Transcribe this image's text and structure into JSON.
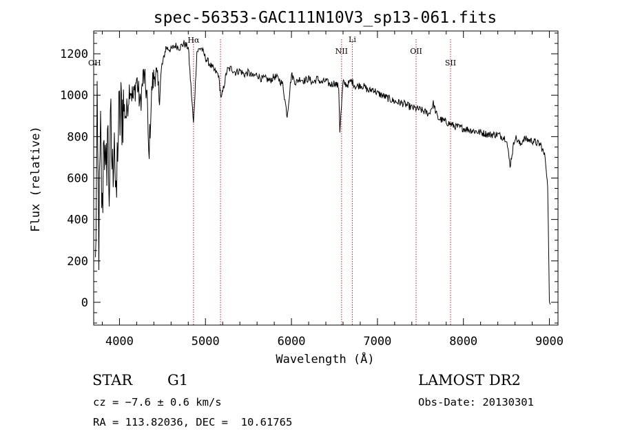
{
  "chart_data": {
    "type": "line",
    "title": "spec-56353-GAC111N10V3_sp13-061.fits",
    "xlabel": "Wavelength (Å)",
    "ylabel": "Flux (relative)",
    "xlim": [
      3700,
      9100
    ],
    "ylim": [
      -110,
      1310
    ],
    "xticks": [
      4000,
      5000,
      6000,
      7000,
      8000,
      9000
    ],
    "yticks": [
      0,
      200,
      400,
      600,
      800,
      1000,
      1200
    ],
    "grid": false,
    "series": [
      {
        "x": [
          3720,
          3740,
          3760,
          3780,
          3800,
          3820,
          3840,
          3860,
          3880,
          3900,
          3920,
          3940,
          3960,
          3980,
          4000,
          4040,
          4080,
          4120,
          4160,
          4200,
          4240,
          4280,
          4320,
          4340,
          4380,
          4420,
          4460,
          4500,
          4540,
          4600,
          4650,
          4700,
          4750,
          4800,
          4861,
          4900,
          4950,
          5000,
          5050,
          5100,
          5150,
          5184,
          5250,
          5300,
          5350,
          5400,
          5450,
          5500,
          5550,
          5600,
          5650,
          5700,
          5750,
          5800,
          5850,
          5900,
          5950,
          6000,
          6050,
          6100,
          6150,
          6200,
          6250,
          6300,
          6350,
          6400,
          6450,
          6500,
          6550,
          6563,
          6600,
          6650,
          6700,
          6750,
          6800,
          6850,
          6900,
          6950,
          7000,
          7100,
          7200,
          7300,
          7400,
          7500,
          7600,
          7650,
          7700,
          7800,
          7900,
          8000,
          8100,
          8200,
          8300,
          8400,
          8500,
          8542,
          8600,
          8662,
          8700,
          8800,
          8900,
          8950,
          8980,
          9000,
          9010
        ],
        "y": [
          150,
          850,
          300,
          780,
          400,
          900,
          500,
          850,
          560,
          820,
          600,
          900,
          380,
          800,
          880,
          950,
          900,
          1050,
          980,
          1080,
          950,
          1100,
          1000,
          700,
          1050,
          1120,
          1000,
          1150,
          1230,
          1220,
          1240,
          1230,
          1250,
          1230,
          860,
          1210,
          1230,
          1180,
          1150,
          1120,
          1100,
          980,
          1120,
          1130,
          1110,
          1120,
          1100,
          1110,
          1090,
          1100,
          1080,
          1080,
          1070,
          1090,
          1080,
          1050,
          900,
          1100,
          1060,
          1080,
          1070,
          1080,
          1060,
          1080,
          1060,
          1070,
          1050,
          1060,
          1040,
          830,
          1060,
          1050,
          1070,
          1040,
          1050,
          1040,
          1020,
          1030,
          1010,
          990,
          970,
          960,
          940,
          930,
          910,
          960,
          890,
          870,
          850,
          840,
          830,
          820,
          810,
          810,
          790,
          660,
          800,
          760,
          790,
          780,
          760,
          700,
          560,
          0,
          -10
        ]
      }
    ],
    "lines": [
      {
        "label": "Hα",
        "x": 4861
      },
      {
        "label": "",
        "x": 5175
      },
      {
        "label": "NII",
        "x": 6583
      },
      {
        "label": "Li",
        "x": 6708
      },
      {
        "label": "OII",
        "x": 7450
      },
      {
        "label": "SII",
        "x": 7850
      }
    ],
    "edge_labels": [
      {
        "label": "OH"
      }
    ]
  },
  "info": {
    "class": "STAR",
    "subclass": "G1",
    "cz": "cz = −7.6 ± 0.6 km/s",
    "radec": "RA = 113.82036, DEC =  10.61765",
    "release": "LAMOST DR2",
    "obsdate": "Obs-Date: 20130301"
  }
}
